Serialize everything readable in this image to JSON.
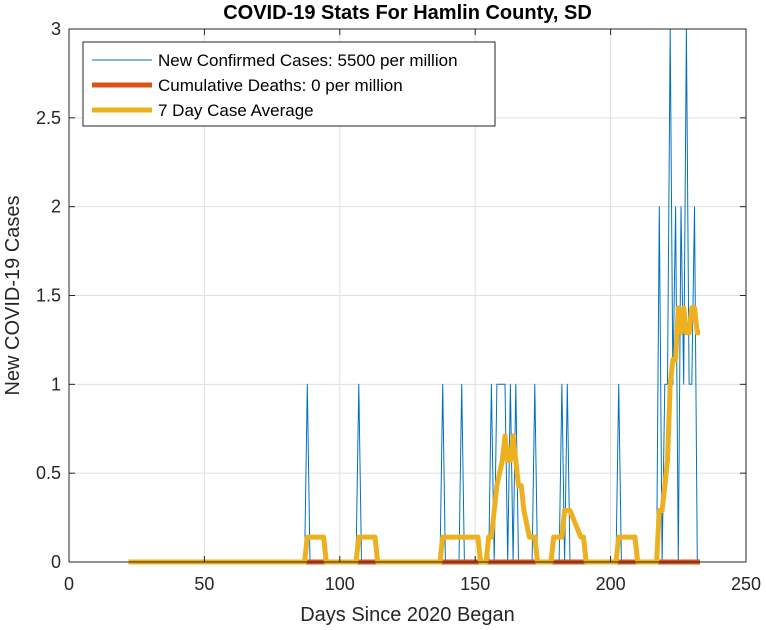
{
  "chart_data": {
    "type": "line",
    "title": "COVID-19 Stats For Hamlin County, SD",
    "xlabel": "Days Since 2020 Began",
    "ylabel": "New COVID-19 Cases",
    "xlim": [
      0,
      250
    ],
    "ylim": [
      0,
      3
    ],
    "xticks": [
      0,
      50,
      100,
      150,
      200,
      250
    ],
    "xtick_labels": [
      "0",
      "50",
      "100",
      "150",
      "200",
      "250"
    ],
    "yticks": [
      0,
      0.5,
      1,
      1.5,
      2,
      2.5,
      3
    ],
    "ytick_labels": [
      "0",
      "0.5",
      "1",
      "1.5",
      "2",
      "2.5",
      "3"
    ],
    "grid": true,
    "legend_position": "top-left",
    "series": [
      {
        "name": "New Confirmed Cases: 5500 per million",
        "color": "#0072BD",
        "line_width": "thin",
        "x": [
          22,
          87,
          88,
          89,
          106,
          107,
          108,
          137,
          138,
          139,
          144,
          145,
          146,
          155,
          156,
          157,
          158,
          159,
          160,
          161,
          162,
          163,
          164,
          165,
          166,
          171,
          172,
          173,
          181,
          182,
          183,
          184,
          185,
          186,
          202,
          203,
          204,
          217,
          218,
          219,
          220,
          221,
          222,
          223,
          224,
          225,
          226,
          227,
          228,
          229,
          230,
          231,
          232,
          233
        ],
        "y": [
          0,
          0,
          1,
          0,
          0,
          1,
          0,
          0,
          1,
          0,
          0,
          1,
          0,
          0,
          1,
          0,
          1,
          1,
          1,
          1,
          0,
          1,
          0,
          1,
          0,
          0,
          1,
          0,
          0,
          1,
          0,
          1,
          0,
          0,
          0,
          1,
          0,
          0,
          2,
          0,
          1,
          1,
          3,
          1,
          2,
          0,
          2,
          1,
          3,
          1,
          1,
          2,
          0,
          0
        ]
      },
      {
        "name": "Cumulative Deaths: 0 per million",
        "color": "#D95319",
        "line_width": "thick",
        "x": [
          22,
          233
        ],
        "y": [
          0,
          0
        ]
      },
      {
        "name": "7 Day Case Average",
        "color": "#EDB120",
        "line_width": "thick",
        "x": [
          22,
          87,
          88,
          94,
          95,
          106,
          107,
          113,
          114,
          137,
          138,
          151,
          152,
          154,
          155,
          156,
          157,
          158,
          160,
          161,
          162,
          163,
          164,
          165,
          166,
          167,
          168,
          170,
          171,
          172,
          173,
          178,
          179,
          180,
          181,
          182,
          183,
          184,
          185,
          189,
          190,
          191,
          192,
          202,
          203,
          209,
          210,
          217,
          218,
          219,
          220,
          221,
          222,
          223,
          224,
          225,
          226,
          227,
          228,
          229,
          230,
          231,
          232,
          233
        ],
        "y": [
          0,
          0,
          0.14,
          0.14,
          0,
          0,
          0.14,
          0.14,
          0,
          0,
          0.14,
          0.14,
          0,
          0,
          0.14,
          0.14,
          0.29,
          0.43,
          0.57,
          0.71,
          0.57,
          0.57,
          0.71,
          0.57,
          0.43,
          0.43,
          0.29,
          0.14,
          0.14,
          0.14,
          0,
          0,
          0.14,
          0.14,
          0.14,
          0.14,
          0.29,
          0.29,
          0.29,
          0.14,
          0.14,
          0,
          0,
          0,
          0.14,
          0.14,
          0,
          0,
          0.29,
          0.29,
          0.43,
          0.57,
          1.0,
          1.14,
          1.14,
          1.43,
          1.29,
          1.43,
          1.29,
          1.29,
          1.43,
          1.43,
          1.29,
          1.29
        ]
      }
    ]
  }
}
